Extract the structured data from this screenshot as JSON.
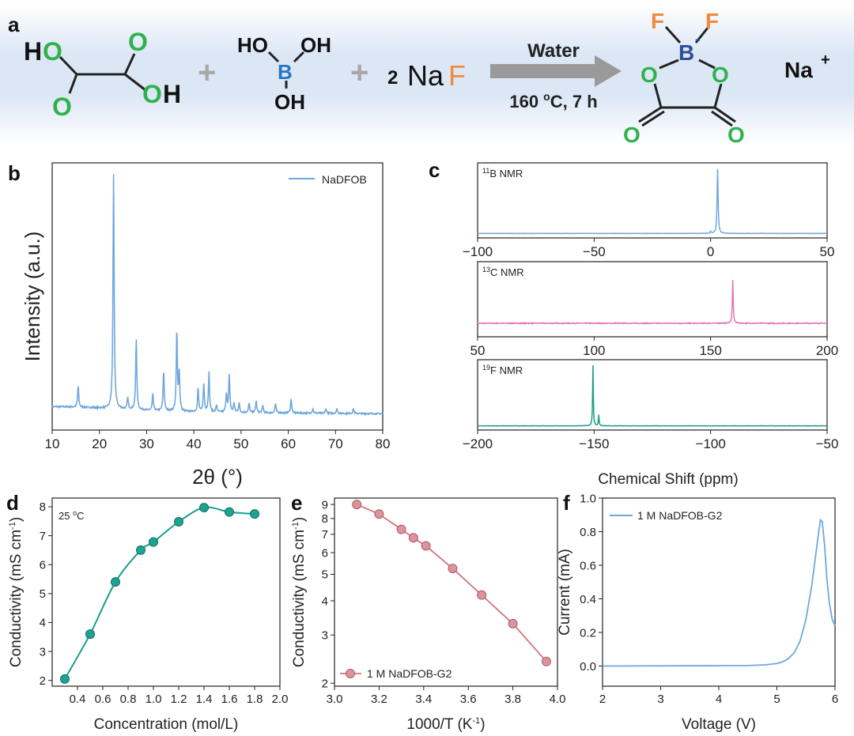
{
  "panel_letters": {
    "a": "a",
    "b": "b",
    "c": "c",
    "d": "d",
    "e": "e",
    "f": "f"
  },
  "colors": {
    "xrd": "#6fa8dc",
    "nmr_b": "#6fa8dc",
    "nmr_c": "#e377b5",
    "nmr_f": "#1a9e8a",
    "conc": "#1a9e8a",
    "arrhenius": "#d27480",
    "lsv": "#6fa8dc",
    "atom_o": "#2fb24c",
    "atom_b": "#2c75c2",
    "atom_f": "#f08a3c",
    "banner": "#d8e5f5"
  },
  "scheme": {
    "oxalic": {
      "h1": "H",
      "o1": "O",
      "o2": "O",
      "o3": "O",
      "o4": "O",
      "h2": "H"
    },
    "boric": {
      "ho": "HO",
      "b": "B",
      "oh1": "OH",
      "oh2": "OH"
    },
    "plus1": "+",
    "plus2": "+",
    "naf": {
      "coef": "2",
      "na": "Na",
      "f": "F"
    },
    "arrow_top": "Water",
    "arrow_bottom_pre": "160 ",
    "arrow_bottom_sup": "o",
    "arrow_bottom_post": "C, 7 h",
    "product": {
      "f1": "F",
      "f2": "F",
      "b": "B",
      "b_charge": "-",
      "o1": "O",
      "o2": "O",
      "o3": "O",
      "o4": "O"
    },
    "cation": "Na",
    "cation_charge": "+"
  },
  "chart_data": [
    {
      "id": "b",
      "type": "line",
      "title": "",
      "xlabel": "2θ (°)",
      "ylabel": "Intensity (a.u.)",
      "xlim": [
        10,
        80
      ],
      "xticks": [
        "10",
        "20",
        "30",
        "40",
        "50",
        "60",
        "70",
        "80"
      ],
      "legend": "NaDFOB",
      "series": [
        {
          "name": "NaDFOB",
          "peaks": [
            [
              15.5,
              0.09
            ],
            [
              23.0,
              1.0
            ],
            [
              26.0,
              0.05
            ],
            [
              27.8,
              0.3
            ],
            [
              31.3,
              0.07
            ],
            [
              33.6,
              0.17
            ],
            [
              36.4,
              0.34
            ],
            [
              36.9,
              0.16
            ],
            [
              40.9,
              0.1
            ],
            [
              42.1,
              0.12
            ],
            [
              43.2,
              0.17
            ],
            [
              44.8,
              0.03
            ],
            [
              46.9,
              0.08
            ],
            [
              47.5,
              0.16
            ],
            [
              48.5,
              0.04
            ],
            [
              49.6,
              0.04
            ],
            [
              51.7,
              0.04
            ],
            [
              53.2,
              0.05
            ],
            [
              54.6,
              0.03
            ],
            [
              57.3,
              0.04
            ],
            [
              60.6,
              0.06
            ],
            [
              65.2,
              0.02
            ],
            [
              68.0,
              0.02
            ],
            [
              70.3,
              0.02
            ],
            [
              73.8,
              0.02
            ]
          ]
        }
      ]
    },
    {
      "id": "c1",
      "type": "line",
      "label_pre": "11",
      "label_post": "B NMR",
      "xlim": [
        -100,
        50
      ],
      "xticks": [
        "−100",
        "−50",
        "0",
        "50"
      ],
      "series": [
        {
          "name": "11B NMR",
          "peaks": [
            [
              3.0,
              1.0
            ],
            [
              0.0,
              0.03
            ]
          ]
        }
      ]
    },
    {
      "id": "c2",
      "type": "line",
      "label_pre": "13",
      "label_post": "C NMR",
      "xlim": [
        50,
        200
      ],
      "xticks": [
        "50",
        "100",
        "150",
        "200"
      ],
      "series": [
        {
          "name": "13C NMR",
          "peaks": [
            [
              159.5,
              1.0
            ]
          ]
        }
      ]
    },
    {
      "id": "c3",
      "type": "line",
      "label_pre": "19",
      "label_post": "F NMR",
      "xlim": [
        -200,
        -50
      ],
      "xticks": [
        "−200",
        "−150",
        "−100",
        "−50"
      ],
      "xlabel": "Chemical Shift (ppm)",
      "series": [
        {
          "name": "19F NMR",
          "peaks": [
            [
              -150.5,
              1.0
            ],
            [
              -148.0,
              0.18
            ]
          ]
        }
      ]
    },
    {
      "id": "d",
      "type": "line",
      "xlabel": "Concentration (mol/L)",
      "ylabel_pre": "Conductivity (mS cm",
      "ylabel_sup": "-1",
      "ylabel_post": ")",
      "annotation_pre": "25 ",
      "annotation_sup": "o",
      "annotation_post": "C",
      "xlim": [
        0.2,
        2.0
      ],
      "ylim": [
        1.8,
        8.3
      ],
      "xticks": [
        "0.4",
        "0.6",
        "0.8",
        "1.0",
        "1.2",
        "1.4",
        "1.6",
        "1.8",
        "2.0"
      ],
      "yticks": [
        "2",
        "3",
        "4",
        "5",
        "6",
        "7",
        "8"
      ],
      "x": [
        0.3,
        0.5,
        0.7,
        0.9,
        1.0,
        1.2,
        1.4,
        1.6,
        1.8
      ],
      "y": [
        2.05,
        3.6,
        5.4,
        6.5,
        6.78,
        7.48,
        7.97,
        7.82,
        7.75
      ]
    },
    {
      "id": "e",
      "type": "line",
      "xlabel": "1000/T (K",
      "xlabel_sup": "-1",
      "xlabel_post": ")",
      "ylabel_pre": "Conductivity (mS cm",
      "ylabel_sup": "-1",
      "ylabel_post": ")",
      "legend": "1 M NaDFOB-G2",
      "yscale": "log",
      "xlim": [
        3.0,
        4.0
      ],
      "ylim": [
        1.95,
        9.5
      ],
      "xticks": [
        "3.0",
        "3.2",
        "3.4",
        "3.6",
        "3.8",
        "4.0"
      ],
      "yticks": [
        "2",
        "3",
        "4",
        "5",
        "6",
        "7",
        "8",
        "9"
      ],
      "x": [
        3.1,
        3.2,
        3.3,
        3.354,
        3.41,
        3.53,
        3.66,
        3.8,
        3.95
      ],
      "y": [
        9.0,
        8.3,
        7.3,
        6.8,
        6.35,
        5.25,
        4.2,
        3.3,
        2.4
      ]
    },
    {
      "id": "f",
      "type": "line",
      "xlabel": "Voltage (V)",
      "ylabel": "Current (mA)",
      "legend": "1 M NaDFOB-G2",
      "xlim": [
        2,
        6
      ],
      "ylim": [
        -0.12,
        1.0
      ],
      "xticks": [
        "2",
        "3",
        "4",
        "5",
        "6"
      ],
      "yticks": [
        "0.0",
        "0.2",
        "0.4",
        "0.6",
        "0.8",
        "1.0"
      ],
      "x": [
        2.0,
        4.5,
        4.8,
        5.0,
        5.1,
        5.2,
        5.3,
        5.4,
        5.5,
        5.6,
        5.7,
        5.75,
        5.78,
        5.82,
        5.86,
        5.9,
        5.95,
        6.0
      ],
      "y": [
        0.0,
        0.003,
        0.007,
        0.015,
        0.025,
        0.045,
        0.08,
        0.15,
        0.28,
        0.48,
        0.75,
        0.87,
        0.86,
        0.72,
        0.52,
        0.38,
        0.28,
        0.24
      ]
    }
  ]
}
